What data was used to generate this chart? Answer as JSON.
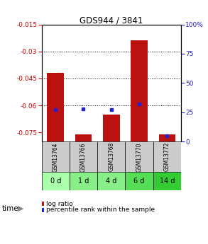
{
  "title": "GDS944 / 3841",
  "samples": [
    "GSM13764",
    "GSM13766",
    "GSM13768",
    "GSM13770",
    "GSM13772"
  ],
  "time_labels": [
    "0 d",
    "1 d",
    "4 d",
    "6 d",
    "14 d"
  ],
  "log_ratios": [
    -0.042,
    -0.076,
    -0.065,
    -0.024,
    -0.076
  ],
  "percentile_ranks": [
    27,
    28,
    27,
    32,
    5
  ],
  "ylim_left": [
    -0.08,
    -0.015
  ],
  "ylim_right": [
    0,
    100
  ],
  "yticks_left": [
    -0.075,
    -0.06,
    -0.045,
    -0.03,
    -0.015
  ],
  "yticks_right": [
    0,
    25,
    50,
    75,
    100
  ],
  "ytick_labels_left": [
    "-0.075",
    "-0.06",
    "-0.045",
    "-0.03",
    "-0.015"
  ],
  "ytick_labels_right": [
    "0",
    "25",
    "50",
    "75",
    "100%"
  ],
  "grid_lines": [
    -0.03,
    -0.045,
    -0.06
  ],
  "bar_color": "#bb1111",
  "dot_color": "#2222cc",
  "bar_width": 0.6,
  "time_row_colors": [
    "#aaffaa",
    "#88ee88",
    "#88ee88",
    "#55dd55",
    "#33cc33"
  ],
  "sample_row_color": "#cccccc",
  "left_axis_color": "#cc0000",
  "right_axis_color": "#2222bb",
  "legend_bar_label": "log ratio",
  "legend_dot_label": "percentile rank within the sample",
  "time_arrow_label": "time"
}
